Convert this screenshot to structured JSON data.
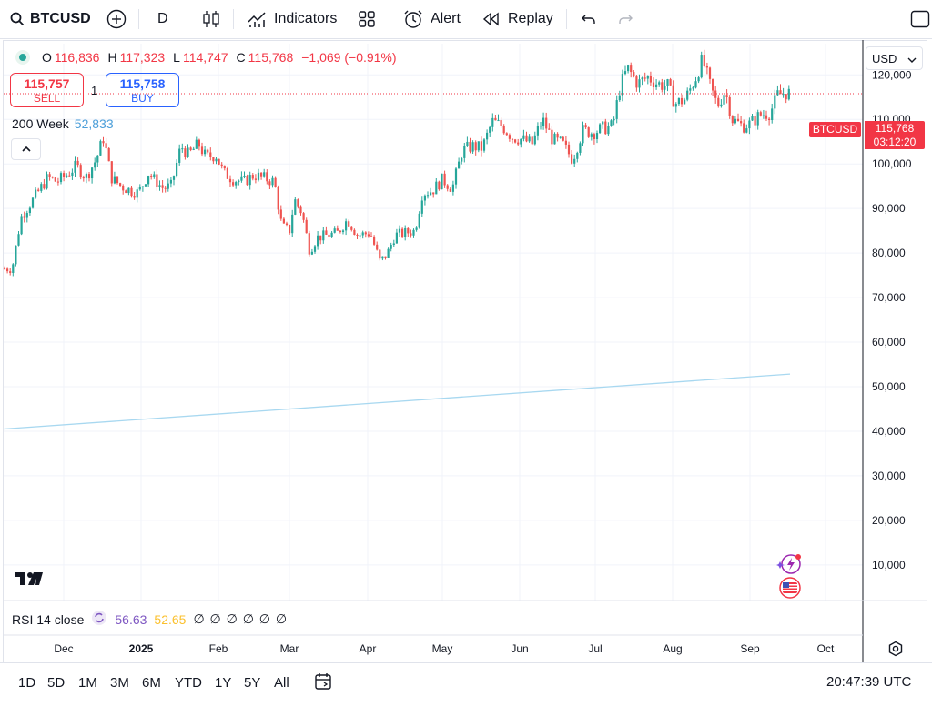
{
  "toolbar": {
    "symbol": "BTCUSD",
    "interval": "D",
    "indicators_label": "Indicators",
    "alert_label": "Alert",
    "replay_label": "Replay"
  },
  "legend": {
    "o_label": "O",
    "o_value": "116,836",
    "h_label": "H",
    "h_value": "117,323",
    "l_label": "L",
    "l_value": "114,747",
    "c_label": "C",
    "c_value": "115,768",
    "change": "−1,069 (−0.91%)"
  },
  "trade": {
    "sell_price": "115,757",
    "sell_label": "SELL",
    "quantity": "1",
    "buy_price": "115,758",
    "buy_label": "BUY"
  },
  "ma": {
    "label": "200 Week",
    "value": "52,833"
  },
  "currency": "USD",
  "price_tag": {
    "symbol": "BTCUSD",
    "price": "115,768",
    "countdown": "03:12:20"
  },
  "rsi": {
    "label": "RSI 14 close",
    "value1": "56.63",
    "value2": "52.65",
    "empties": "∅ ∅ ∅ ∅ ∅ ∅"
  },
  "ranges": [
    "1D",
    "5D",
    "1M",
    "3M",
    "6M",
    "YTD",
    "1Y",
    "5Y",
    "All"
  ],
  "clock": "20:47:39 UTC",
  "colors": {
    "up": "#26a69a",
    "down": "#ef5350",
    "ma_line": "#a8d8f0",
    "rsi_v1": "#7e57c2",
    "rsi_v2": "#fbc02d"
  },
  "chart_data": {
    "type": "candlestick",
    "y_ticks": [
      "120,000",
      "110,000",
      "100,000",
      "90,000",
      "80,000",
      "70,000",
      "60,000",
      "50,000",
      "40,000",
      "30,000",
      "20,000",
      "10,000"
    ],
    "x_ticks": [
      "Dec",
      "2025",
      "Feb",
      "Mar",
      "Apr",
      "May",
      "Jun",
      "Jul",
      "Aug",
      "Sep",
      "Oct"
    ],
    "ylim": [
      2000,
      127000
    ],
    "last_price": 115768,
    "close_series": [
      [
        "Nov 8",
        76500
      ],
      [
        "Nov 12",
        88000
      ],
      [
        "Nov 16",
        91000
      ],
      [
        "Nov 20",
        94000
      ],
      [
        "Nov 24",
        97000
      ],
      [
        "Nov 28",
        96000
      ],
      [
        "Dec 2",
        97500
      ],
      [
        "Dec 6",
        99500
      ],
      [
        "Dec 10",
        97000
      ],
      [
        "Dec 14",
        101000
      ],
      [
        "Dec 17",
        106000
      ],
      [
        "Dec 20",
        97000
      ],
      [
        "Dec 24",
        95000
      ],
      [
        "Dec 28",
        94000
      ],
      [
        "Dec 31",
        93500
      ],
      [
        "Jan 4",
        98000
      ],
      [
        "Jan 7",
        96000
      ],
      [
        "Jan 10",
        94500
      ],
      [
        "Jan 13",
        95000
      ],
      [
        "Jan 17",
        104000
      ],
      [
        "Jan 20",
        102000
      ],
      [
        "Jan 24",
        104500
      ],
      [
        "Jan 27",
        101500
      ],
      [
        "Jan 31",
        102000
      ],
      [
        "Feb 3",
        98000
      ],
      [
        "Feb 7",
        96500
      ],
      [
        "Feb 11",
        96000
      ],
      [
        "Feb 15",
        97500
      ],
      [
        "Feb 19",
        96800
      ],
      [
        "Feb 23",
        96000
      ],
      [
        "Feb 26",
        86000
      ],
      [
        "Mar 1",
        85000
      ],
      [
        "Mar 3",
        92000
      ],
      [
        "Mar 6",
        89000
      ],
      [
        "Mar 9",
        80500
      ],
      [
        "Mar 12",
        83500
      ],
      [
        "Mar 16",
        84000
      ],
      [
        "Mar 20",
        84500
      ],
      [
        "Mar 24",
        87500
      ],
      [
        "Mar 28",
        84000
      ],
      [
        "Apr 2",
        84500
      ],
      [
        "Apr 6",
        78000
      ],
      [
        "Apr 9",
        80000
      ],
      [
        "Apr 12",
        84000
      ],
      [
        "Apr 16",
        84500
      ],
      [
        "Apr 20",
        85000
      ],
      [
        "Apr 23",
        93500
      ],
      [
        "Apr 27",
        94000
      ],
      [
        "May 1",
        96500
      ],
      [
        "May 5",
        94500
      ],
      [
        "May 9",
        103000
      ],
      [
        "May 13",
        104000
      ],
      [
        "May 17",
        103500
      ],
      [
        "May 21",
        109500
      ],
      [
        "May 25",
        108500
      ],
      [
        "May 29",
        106000
      ],
      [
        "Jun 2",
        105500
      ],
      [
        "Jun 6",
        104500
      ],
      [
        "Jun 10",
        110000
      ],
      [
        "Jun 14",
        105500
      ],
      [
        "Jun 18",
        104500
      ],
      [
        "Jun 22",
        101000
      ],
      [
        "Jun 26",
        107500
      ],
      [
        "Jun 30",
        107000
      ],
      [
        "Jul 4",
        108000
      ],
      [
        "Jul 8",
        108500
      ],
      [
        "Jul 11",
        117500
      ],
      [
        "Jul 14",
        121500
      ],
      [
        "Jul 18",
        118000
      ],
      [
        "Jul 22",
        119500
      ],
      [
        "Jul 26",
        118000
      ],
      [
        "Jul 30",
        117500
      ],
      [
        "Aug 2",
        113500
      ],
      [
        "Aug 6",
        114500
      ],
      [
        "Aug 10",
        119000
      ],
      [
        "Aug 13",
        123500
      ],
      [
        "Aug 16",
        117500
      ],
      [
        "Aug 19",
        113000
      ],
      [
        "Aug 22",
        116500
      ],
      [
        "Aug 25",
        110000
      ],
      [
        "Aug 29",
        108500
      ],
      [
        "Sep 1",
        109000
      ],
      [
        "Sep 5",
        111000
      ],
      [
        "Sep 9",
        111500
      ],
      [
        "Sep 12",
        115500
      ],
      [
        "Sep 15",
        116000
      ],
      [
        "Sep 18",
        115768
      ]
    ],
    "ma_series": {
      "name": "200 Week",
      "start": 40500,
      "end": 52833
    }
  }
}
